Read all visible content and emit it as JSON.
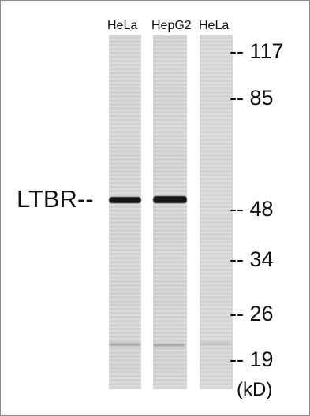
{
  "lanes": [
    {
      "label": "HeLa"
    },
    {
      "label": "HepG2"
    },
    {
      "label": "HeLa"
    }
  ],
  "protein_label": "LTBR--",
  "markers": [
    {
      "label": "-- 117"
    },
    {
      "label": "-- 85"
    },
    {
      "label": "-- 48"
    },
    {
      "label": "-- 34"
    },
    {
      "label": "-- 26"
    },
    {
      "label": "-- 19"
    }
  ],
  "units_label": "(kD)",
  "colors": {
    "lane_background": "#d7d7d7",
    "band": "#151515",
    "text": "#111111",
    "border": "#8a8a8a"
  }
}
